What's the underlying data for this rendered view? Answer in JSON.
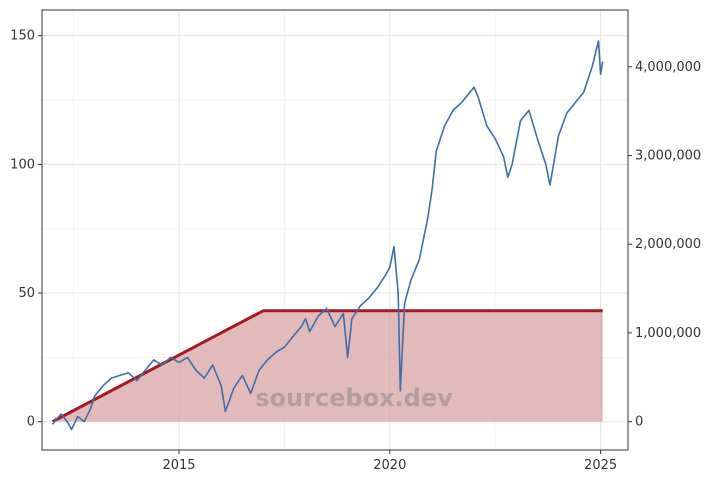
{
  "watermark": "sourcebox.dev",
  "chart_data": {
    "type": "line",
    "title": "",
    "xlabel": "",
    "ylabel": "",
    "xlim": [
      2011.75,
      2025.65
    ],
    "ylim": [
      -11,
      160
    ],
    "y2lim": [
      -320000,
      4640000
    ],
    "x_ticks": [
      2015,
      2020,
      2025
    ],
    "y_ticks": [
      0,
      50,
      100,
      150
    ],
    "y2_ticks": [
      0,
      1000000,
      2000000,
      3000000,
      4000000
    ],
    "y2_tick_labels": [
      "0",
      "1,000,000",
      "2,000,000",
      "3,000,000",
      "4,000,000"
    ],
    "grid": true,
    "colors": {
      "price_line": "#3f6ea6",
      "invested_line": "#a31a22",
      "invested_fill": "#d9a3a6"
    },
    "series": [
      {
        "axis": "left",
        "kind": "line",
        "x": [
          2012.0,
          2012.2,
          2012.35,
          2012.45,
          2012.6,
          2012.75,
          2012.9,
          2013.0,
          2013.2,
          2013.4,
          2013.6,
          2013.8,
          2014.0,
          2014.2,
          2014.4,
          2014.6,
          2014.8,
          2015.0,
          2015.2,
          2015.4,
          2015.6,
          2015.8,
          2016.0,
          2016.1,
          2016.3,
          2016.5,
          2016.7,
          2016.9,
          2017.1,
          2017.3,
          2017.5,
          2017.7,
          2017.9,
          2018.0,
          2018.1,
          2018.3,
          2018.5,
          2018.7,
          2018.9,
          2019.0,
          2019.1,
          2019.3,
          2019.5,
          2019.7,
          2019.9,
          2020.0,
          2020.1,
          2020.2,
          2020.25,
          2020.35,
          2020.5,
          2020.7,
          2020.9,
          2021.0,
          2021.1,
          2021.3,
          2021.5,
          2021.7,
          2021.9,
          2022.0,
          2022.1,
          2022.3,
          2022.5,
          2022.7,
          2022.8,
          2022.9,
          2023.1,
          2023.3,
          2023.5,
          2023.7,
          2023.8,
          2024.0,
          2024.2,
          2024.4,
          2024.6,
          2024.8,
          2024.95,
          2025.0,
          2025.05
        ],
        "y": [
          -1,
          3,
          0,
          -3,
          2,
          0,
          5,
          10,
          14,
          17,
          18,
          19,
          16,
          20,
          24,
          22,
          25,
          23,
          25,
          20,
          17,
          22,
          14,
          4,
          13,
          18,
          11,
          20,
          24,
          27,
          29,
          33,
          37,
          40,
          35,
          41,
          44,
          37,
          42,
          25,
          40,
          45,
          48,
          52,
          57,
          60,
          68,
          50,
          12,
          46,
          55,
          63,
          79,
          90,
          105,
          115,
          121,
          124,
          128,
          130,
          126,
          115,
          110,
          103,
          95,
          100,
          117,
          121,
          110,
          100,
          92,
          111,
          120,
          124,
          128,
          138,
          148,
          135,
          140
        ]
      },
      {
        "axis": "right",
        "kind": "area",
        "x": [
          2012.0,
          2017.0,
          2025.05
        ],
        "y": [
          0,
          1250000,
          1250000
        ]
      }
    ]
  }
}
